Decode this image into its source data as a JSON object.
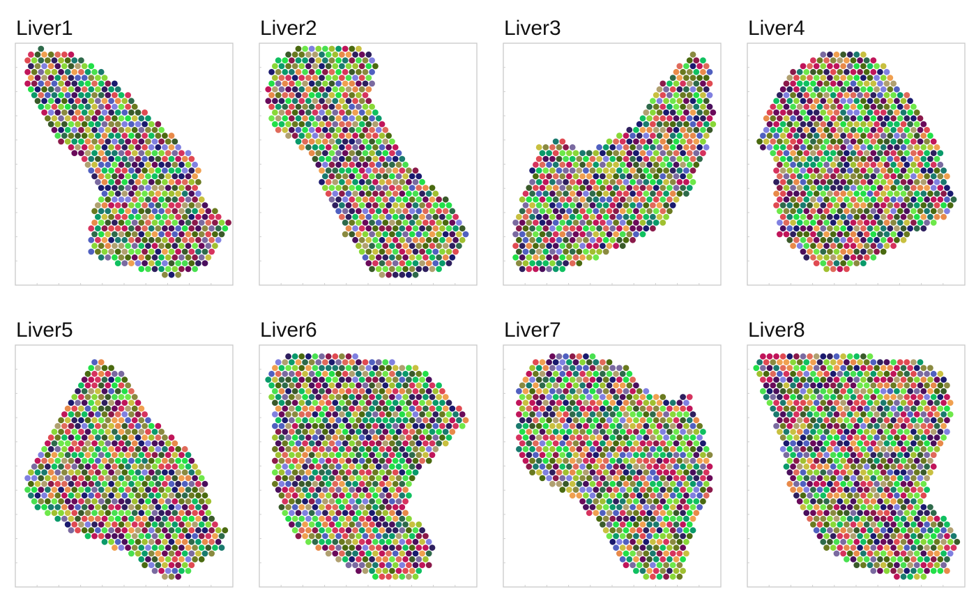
{
  "chart_data": {
    "type": "scatter",
    "description_kind": "spatial spot plots, 8 tissue sections",
    "grid": false,
    "legend": "none",
    "point_palette": [
      "#1a1a6e",
      "#2e1f5e",
      "#4a0f5c",
      "#6a0a5a",
      "#8b1a4a",
      "#c0155a",
      "#d6335e",
      "#e04a52",
      "#e06a5a",
      "#e88a4a",
      "#f0a050",
      "#c8c040",
      "#a0c030",
      "#88d838",
      "#6ee84a",
      "#48e050",
      "#22e048",
      "#10c060",
      "#0a9a6a",
      "#1a7a6e",
      "#2e6a4a",
      "#3a5a2a",
      "#4a6a10",
      "#6a7a20",
      "#8a8a40",
      "#b0a070",
      "#7a6aa0",
      "#8080e0",
      "#5060c0"
    ],
    "panels": [
      {
        "title": "Liver1"
      },
      {
        "title": "Liver2"
      },
      {
        "title": "Liver3"
      },
      {
        "title": "Liver4"
      },
      {
        "title": "Liver5"
      },
      {
        "title": "Liver6"
      },
      {
        "title": "Liver7"
      },
      {
        "title": "Liver8"
      }
    ]
  }
}
